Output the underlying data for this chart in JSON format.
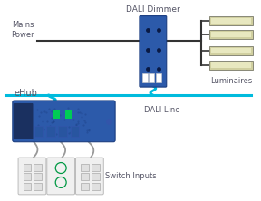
{
  "bg_color": "#ffffff",
  "dali_line_color": "#00bbdd",
  "mains_line_color": "#333333",
  "wire_color": "#999999",
  "dimmer_color": "#2c5aaa",
  "dimmer_dark": "#1a3d80",
  "ehub_color": "#2c5aaa",
  "lum_color": "#d0cfa0",
  "lum_inner": "#e8e8c0",
  "switch_color": "#f0f0f0",
  "switch_border": "#bbbbbb",
  "text_color": "#555566",
  "title_dali": "DALI Dimmer",
  "title_mains": "Mains\nPower",
  "title_dali_line": "DALI Line",
  "title_luminaires": "Luminaires",
  "title_ehub": "eHub",
  "title_switch": "Switch Inputs"
}
